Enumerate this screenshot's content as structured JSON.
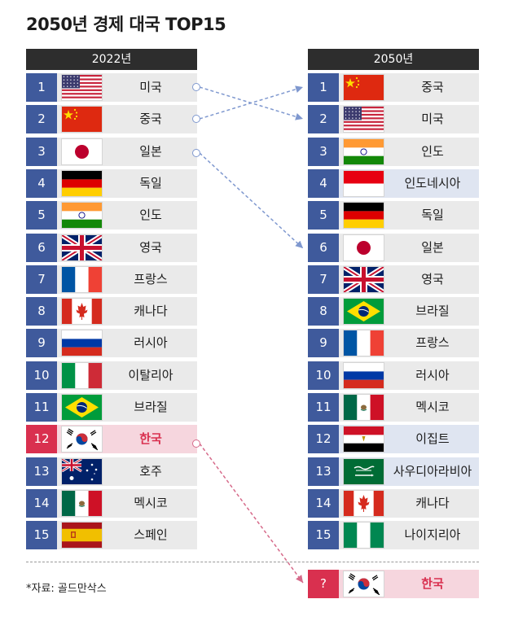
{
  "title": "2050년 경제 대국 TOP15",
  "source": "*자료: 골드만삭스",
  "left": {
    "header": "2022년",
    "rows": [
      {
        "rank": "1",
        "name": "미국",
        "flag": "us-flag"
      },
      {
        "rank": "2",
        "name": "중국",
        "flag": "china-flag"
      },
      {
        "rank": "3",
        "name": "일본",
        "flag": "japan-flag"
      },
      {
        "rank": "4",
        "name": "독일",
        "flag": "germany-flag"
      },
      {
        "rank": "5",
        "name": "인도",
        "flag": "india-flag"
      },
      {
        "rank": "6",
        "name": "영국",
        "flag": "uk-flag"
      },
      {
        "rank": "7",
        "name": "프랑스",
        "flag": "france-flag"
      },
      {
        "rank": "8",
        "name": "캐나다",
        "flag": "canada-flag"
      },
      {
        "rank": "9",
        "name": "러시아",
        "flag": "russia-flag"
      },
      {
        "rank": "10",
        "name": "이탈리아",
        "flag": "italy-flag"
      },
      {
        "rank": "11",
        "name": "브라질",
        "flag": "brazil-flag"
      },
      {
        "rank": "12",
        "name": "한국",
        "flag": "korea-flag"
      },
      {
        "rank": "13",
        "name": "호주",
        "flag": "australia-flag"
      },
      {
        "rank": "14",
        "name": "멕시코",
        "flag": "mexico-flag"
      },
      {
        "rank": "15",
        "name": "스페인",
        "flag": "spain-flag"
      }
    ]
  },
  "right": {
    "header": "2050년",
    "rows": [
      {
        "rank": "1",
        "name": "중국",
        "flag": "china-flag"
      },
      {
        "rank": "2",
        "name": "미국",
        "flag": "us-flag"
      },
      {
        "rank": "3",
        "name": "인도",
        "flag": "india-flag"
      },
      {
        "rank": "4",
        "name": "인도네시아",
        "flag": "indonesia-flag"
      },
      {
        "rank": "5",
        "name": "독일",
        "flag": "germany-flag"
      },
      {
        "rank": "6",
        "name": "일본",
        "flag": "japan-flag"
      },
      {
        "rank": "7",
        "name": "영국",
        "flag": "uk-flag"
      },
      {
        "rank": "8",
        "name": "브라질",
        "flag": "brazil-flag"
      },
      {
        "rank": "9",
        "name": "프랑스",
        "flag": "france-flag"
      },
      {
        "rank": "10",
        "name": "러시아",
        "flag": "russia-flag"
      },
      {
        "rank": "11",
        "name": "멕시코",
        "flag": "mexico-flag"
      },
      {
        "rank": "12",
        "name": "이집트",
        "flag": "egypt-flag"
      },
      {
        "rank": "13",
        "name": "사우디아라비아",
        "flag": "saudi-arabia-flag"
      },
      {
        "rank": "14",
        "name": "캐나다",
        "flag": "canada-flag"
      },
      {
        "rank": "15",
        "name": "나이지리아",
        "flag": "nigeria-flag"
      }
    ],
    "extra": {
      "rank": "?",
      "name": "한국",
      "flag": "korea-flag"
    }
  },
  "colors": {
    "rank_blue": "#3f5a9c",
    "rank_red": "#d9304f",
    "row_gray": "#eaeaea",
    "row_blue_highlight": "#dfe5f1",
    "row_pink_highlight": "#f6d6de",
    "arrow_blue": "#7f98cf",
    "arrow_pink": "#d66a8a"
  }
}
